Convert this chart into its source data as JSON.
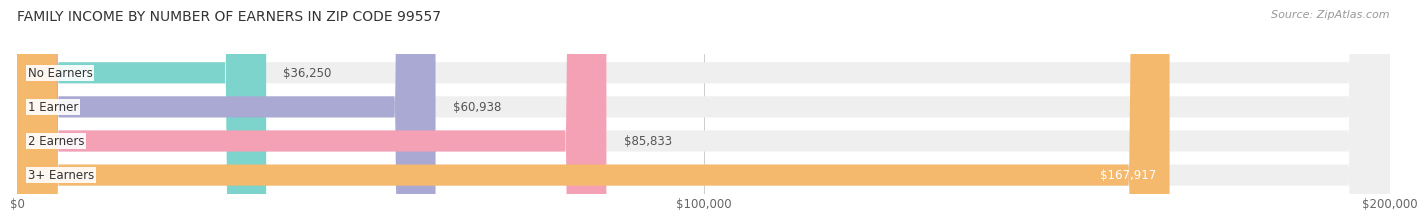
{
  "title": "FAMILY INCOME BY NUMBER OF EARNERS IN ZIP CODE 99557",
  "source": "Source: ZipAtlas.com",
  "categories": [
    "No Earners",
    "1 Earner",
    "2 Earners",
    "3+ Earners"
  ],
  "values": [
    36250,
    60938,
    85833,
    167917
  ],
  "bar_colors": [
    "#7dd4cc",
    "#a9a9d4",
    "#f4a0b5",
    "#f5b96e"
  ],
  "bar_bg_color": "#efefef",
  "xlim": [
    0,
    200000
  ],
  "xtick_labels": [
    "$0",
    "$100,000",
    "$200,000"
  ],
  "xtick_values": [
    0,
    100000,
    200000
  ],
  "title_fontsize": 10,
  "source_fontsize": 8,
  "label_fontsize": 8.5,
  "category_fontsize": 8.5,
  "tick_fontsize": 8.5,
  "background_color": "#ffffff"
}
